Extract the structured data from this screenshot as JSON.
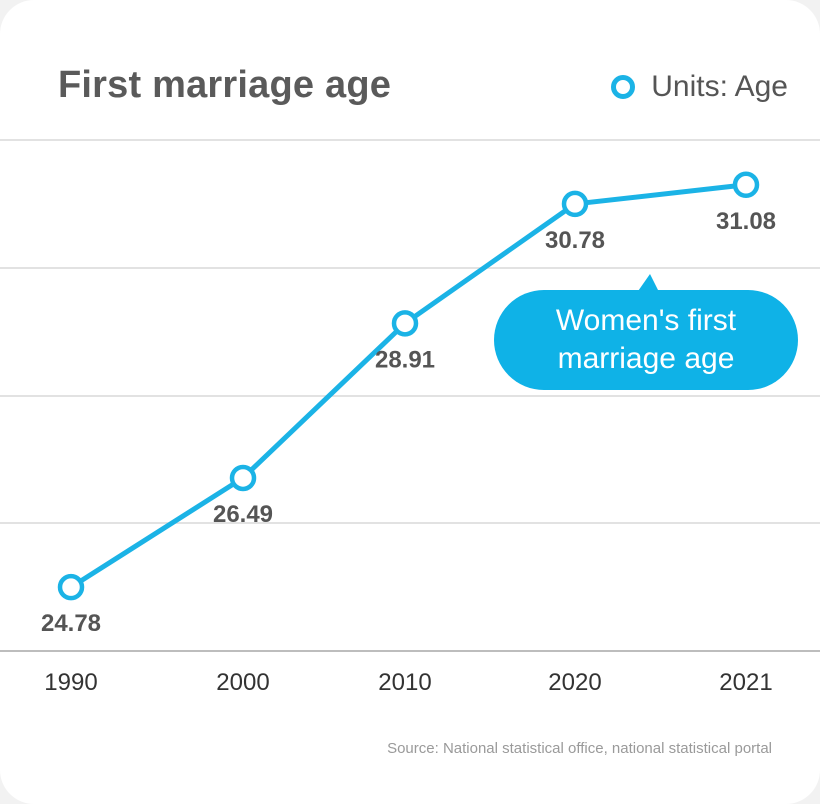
{
  "title": "First marriage age",
  "legend": {
    "label": "Units: Age",
    "marker_icon": "hollow-circle-icon"
  },
  "callout": {
    "text": "Women's first marriage age"
  },
  "source": "Source: National statistical office, national statistical portal",
  "colors": {
    "series": "#1bb3e6",
    "callout": "#0fb2e7",
    "grid": "#d9d9d9",
    "text": "#555555"
  },
  "chart_data": {
    "type": "line",
    "title": "First marriage age",
    "categories": [
      "1990",
      "2000",
      "2010",
      "2020",
      "2021"
    ],
    "series": [
      {
        "name": "Women's first marriage age",
        "values": [
          24.78,
          26.49,
          28.91,
          30.78,
          31.08
        ]
      }
    ],
    "data_labels": [
      "24.78",
      "26.49",
      "28.91",
      "30.78",
      "31.08"
    ],
    "ylabel": "Units: Age",
    "xlabel": "",
    "ylim": [
      24,
      32
    ],
    "grid": true,
    "legend_position": "top-right"
  }
}
